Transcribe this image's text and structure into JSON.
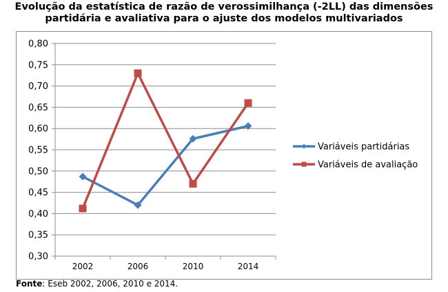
{
  "page": {
    "title_line1": "Evolução da estatística de razão de verossimilhança (-2LL) das dimensões",
    "title_line2": "partidária e avaliativa para o ajuste dos modelos multivariados",
    "source_label": "Fonte",
    "source_text": ": Eseb 2002, 2006, 2010 e 2014."
  },
  "chart_data": {
    "type": "line",
    "categories": [
      "2002",
      "2006",
      "2010",
      "2014"
    ],
    "series": [
      {
        "name": "Variáveis partidárias",
        "values": [
          0.487,
          0.42,
          0.576,
          0.606
        ],
        "color": "#4a7ebb",
        "marker": "diamond"
      },
      {
        "name": "Variáveis de avaliação",
        "values": [
          0.412,
          0.73,
          0.47,
          0.66
        ],
        "color": "#be4b48",
        "marker": "square"
      }
    ],
    "ylim": [
      0.3,
      0.8
    ],
    "yticks": [
      "0,30",
      "0,35",
      "0,40",
      "0,45",
      "0,50",
      "0,55",
      "0,60",
      "0,65",
      "0,70",
      "0,75",
      "0,80"
    ],
    "grid": true,
    "legend": "right",
    "title": "",
    "xlabel": "",
    "ylabel": ""
  }
}
